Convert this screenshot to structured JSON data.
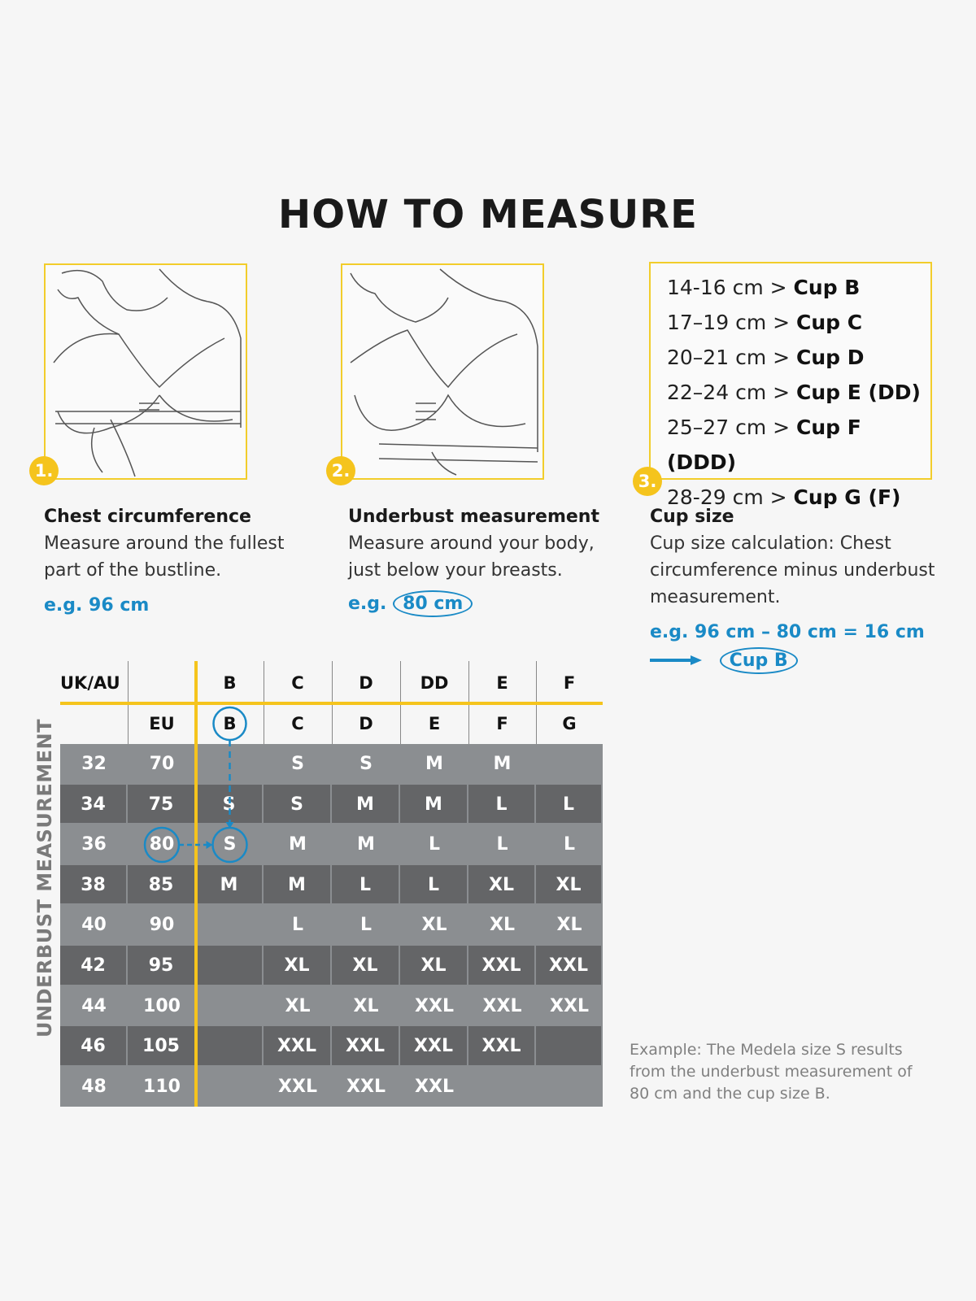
{
  "title": "HOW TO MEASURE",
  "steps": [
    {
      "number": "1.",
      "heading": "Chest circumference",
      "text_lines": [
        "Measure around the fullest",
        "part of the bustline."
      ],
      "example": "e.g. 96 cm"
    },
    {
      "number": "2.",
      "heading": "Underbust measurement",
      "text_lines": [
        "Measure around your body,",
        "just below your breasts."
      ],
      "example_prefix": "e.g.",
      "example_value": "80 cm"
    },
    {
      "number": "3.",
      "heading": "Cup size",
      "text_lines": [
        "Cup size calculation: Chest",
        "circumference minus underbust",
        "measurement."
      ],
      "example": "e.g. 96 cm – 80 cm = 16 cm",
      "result": "Cup B"
    }
  ],
  "cup_table": [
    {
      "range": "14-16 cm >",
      "cup": "Cup B"
    },
    {
      "range": "17–19 cm >",
      "cup": "Cup C"
    },
    {
      "range": "20–21 cm >",
      "cup": "Cup D"
    },
    {
      "range": "22–24 cm >",
      "cup": "Cup E (DD)"
    },
    {
      "range": "25–27 cm >",
      "cup": "Cup F (DDD)"
    },
    {
      "range": "28-29 cm >",
      "cup": "Cup G (F)"
    }
  ],
  "size_chart": {
    "side_label": "UNDERBUST MEASUREMENT",
    "uk_label": "UK/AU",
    "eu_label": "EU",
    "uk_cups": [
      "B",
      "C",
      "D",
      "DD",
      "E",
      "F"
    ],
    "eu_cups": [
      "B",
      "C",
      "D",
      "E",
      "F",
      "G"
    ],
    "rows": [
      {
        "uk": "32",
        "eu": "70",
        "sizes": [
          "",
          "S",
          "S",
          "M",
          "M",
          ""
        ]
      },
      {
        "uk": "34",
        "eu": "75",
        "sizes": [
          "S",
          "S",
          "M",
          "M",
          "L",
          "L"
        ]
      },
      {
        "uk": "36",
        "eu": "80",
        "sizes": [
          "S",
          "M",
          "M",
          "L",
          "L",
          "L"
        ]
      },
      {
        "uk": "38",
        "eu": "85",
        "sizes": [
          "M",
          "M",
          "L",
          "L",
          "XL",
          "XL"
        ]
      },
      {
        "uk": "40",
        "eu": "90",
        "sizes": [
          "",
          "L",
          "L",
          "XL",
          "XL",
          "XL"
        ]
      },
      {
        "uk": "42",
        "eu": "95",
        "sizes": [
          "",
          "XL",
          "XL",
          "XL",
          "XXL",
          "XXL"
        ]
      },
      {
        "uk": "44",
        "eu": "100",
        "sizes": [
          "",
          "XL",
          "XL",
          "XXL",
          "XXL",
          "XXL"
        ]
      },
      {
        "uk": "46",
        "eu": "105",
        "sizes": [
          "",
          "XXL",
          "XXL",
          "XXL",
          "XXL",
          ""
        ]
      },
      {
        "uk": "48",
        "eu": "110",
        "sizes": [
          "",
          "XXL",
          "XXL",
          "XXL",
          "",
          ""
        ]
      }
    ],
    "highlight": {
      "eu": "80",
      "cup": "B",
      "size": "S"
    }
  },
  "example_note": [
    "Example: The Medela size S results",
    "from the underbust measurement of",
    "80 cm and the cup size B."
  ],
  "colors": {
    "accent_yellow": "#f5c41d",
    "accent_blue": "#1a8ac6",
    "row_light": "#8b8e91",
    "row_dark": "#646567"
  }
}
